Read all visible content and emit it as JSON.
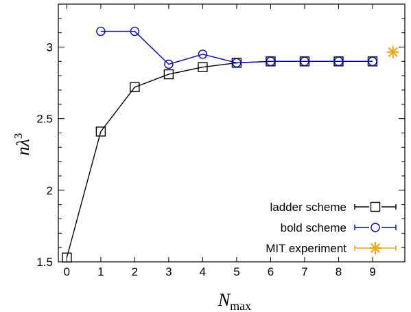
{
  "chart_data": {
    "type": "line",
    "xlabel": "N",
    "xlabel_sub": "max",
    "ylabel": "nλ",
    "ylabel_sup": "3",
    "xlim": [
      -0.25,
      9.95
    ],
    "ylim": [
      1.5,
      3.3
    ],
    "x_ticks": [
      0,
      1,
      2,
      3,
      4,
      5,
      6,
      7,
      8,
      9
    ],
    "x_tick_labels": [
      "0",
      "1",
      "2",
      "3",
      "4",
      "5",
      "6",
      "7",
      "8",
      "9"
    ],
    "y_ticks": [
      1.5,
      2,
      2.5,
      3
    ],
    "y_tick_labels": [
      "1.5",
      "2",
      "2.5",
      "3"
    ],
    "grid": false,
    "legend_placement": "bottom-right",
    "series": [
      {
        "name": "ladder scheme",
        "color": "#000000",
        "marker": "square",
        "x": [
          0,
          1,
          2,
          3,
          4,
          5,
          6,
          7,
          8,
          9
        ],
        "y": [
          1.53,
          2.41,
          2.72,
          2.81,
          2.86,
          2.89,
          2.9,
          2.9,
          2.9,
          2.9
        ]
      },
      {
        "name": "bold scheme",
        "color": "#0000cc",
        "marker": "circle",
        "x": [
          1,
          2,
          3,
          4,
          5,
          6,
          7,
          8,
          9
        ],
        "y": [
          3.11,
          3.11,
          2.88,
          2.95,
          2.89,
          2.9,
          2.9,
          2.9,
          2.9
        ]
      },
      {
        "name": "MIT experiment",
        "color": "#f5a000",
        "marker": "asterisk",
        "x": [
          9.6
        ],
        "y": [
          2.965
        ]
      }
    ]
  }
}
